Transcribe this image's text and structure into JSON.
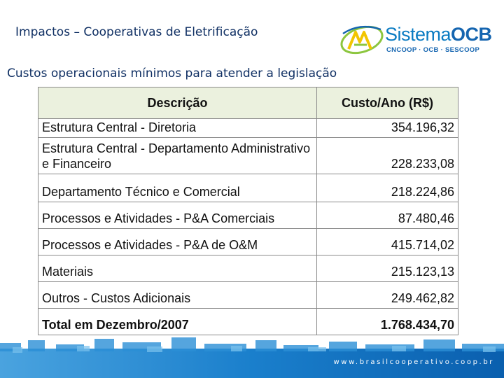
{
  "header": {
    "title": "Impactos – Cooperativas de Eletrificação",
    "subtitle": "Custos operacionais mínimos para atender a legislação"
  },
  "logo": {
    "word_light": "Sistema",
    "word_bold": "OCB",
    "sub": "CNCOOP · OCB · SESCOOP",
    "colors": {
      "blue": "#1565b0",
      "green": "#8cc63f",
      "yellow": "#f2c500"
    }
  },
  "table": {
    "headers": {
      "description": "Descrição",
      "cost": "Custo/Ano (R$)"
    },
    "rows": [
      {
        "description": "Estrutura Central - Diretoria",
        "cost": "354.196,32"
      },
      {
        "description": "Estrutura Central - Departamento Administrativo e Financeiro",
        "cost": "228.233,08"
      },
      {
        "description": "Departamento Técnico e Comercial",
        "cost": "218.224,86"
      },
      {
        "description": "Processos e Atividades - P&A Comerciais",
        "cost": "87.480,46"
      },
      {
        "description": "Processos e Atividades - P&A de O&M",
        "cost": "415.714,02"
      },
      {
        "description": "Materiais",
        "cost": "215.123,13"
      },
      {
        "description": "Outros - Custos Adicionais",
        "cost": "249.462,82"
      }
    ],
    "total": {
      "description": "Total em Dezembro/2007",
      "cost": "1.768.434,70"
    },
    "header_bg": "#ebf1de"
  },
  "footer": {
    "url": "www.brasilcooperativo.coop.br",
    "band_color": "#0a6ec0"
  }
}
